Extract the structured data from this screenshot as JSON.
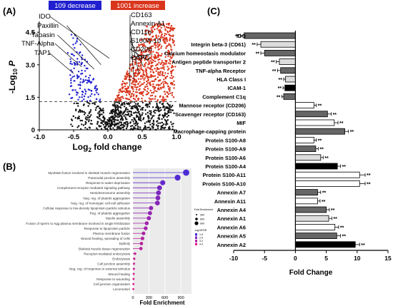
{
  "panels": {
    "a": "(A)",
    "b": "(B)",
    "c": "(C)"
  },
  "chart_data": [
    {
      "type": "scatter",
      "subtype": "volcano",
      "xlabel_main": "Log",
      "xlabel_sub": "2",
      "xlabel_rest": " fold change",
      "ylabel_main": "-Log",
      "ylabel_sub": "10",
      "ylabel_rest": " P",
      "xlim": [
        -1.0,
        1.0
      ],
      "ylim": [
        0,
        5
      ],
      "x_ticks": [
        -1.0,
        -0.5,
        0.0,
        0.5,
        1.0
      ],
      "x_tick_labels": [
        "-1.0",
        "-0.5",
        "0.0",
        "0.5",
        "1.0"
      ],
      "y_ticks": [
        0,
        1.5,
        3.0,
        4.5
      ],
      "y_tick_labels": [
        "0",
        "1.5",
        "3.0",
        "4.5"
      ],
      "threshold": 1.3,
      "decrease_label": "109 decrease",
      "increase_label": "1001 increase",
      "decrease_color": "#1f1fcf",
      "increase_color": "#d9351c",
      "neutral_color": "#111111",
      "left_labels": [
        "IDO",
        "Paxillin",
        "Tapasin",
        "TNF-Alpha",
        "TAP1"
      ],
      "right_labels": [
        "CD163",
        "Annexin A1",
        "CD11b",
        "S100A-10",
        "CD206",
        "CAPG"
      ]
    },
    {
      "type": "bar",
      "subtype": "lollipop",
      "xlabel": "Fold Enrichment",
      "xlim": [
        0,
        1100
      ],
      "x_ticks": [
        0,
        300,
        600,
        900
      ],
      "x_tick_labels": [
        "0",
        "300",
        "600",
        "900"
      ],
      "categories": [
        "Myoblast fusion involved in skeletal muscle regeneration",
        "Paranodal junction assembly",
        "Response to water deprivation",
        "Complement receptor mediated signaling pathway",
        "Hemidesmosome assembly",
        "Neg. reg. of platelet aggregation",
        "Neg. reg. of homotypic cell-cell adhesion",
        "Cellular response to low-density lipoprotein particle stimulus",
        "Reg. of platelet aggregation",
        "Myelin assembly",
        "Fusion of sperm to egg plasma membrane involved in single fertilization",
        "Response to lipoprotein particle",
        "Plasma membrane fusion",
        "Wound healing, spreading of cells",
        "Epiboly",
        "Skeletal muscle tissue regeneration",
        "Receptor-mediated endocytosis",
        "Endocytosis",
        "Cell junction assembly",
        "Neg. reg. of response to external stimulus",
        "Wound healing",
        "Response to wounding",
        "Cell junction organization",
        "Locomotion"
      ],
      "values": [
        1000,
        840,
        560,
        500,
        480,
        470,
        460,
        340,
        320,
        300,
        260,
        240,
        200,
        180,
        160,
        150,
        40,
        25,
        20,
        18,
        15,
        12,
        10,
        8
      ],
      "fdr": [
        1.4,
        1.6,
        2.0,
        2.3,
        2.5,
        2.6,
        2.7,
        2.9,
        3.0,
        3.1,
        3.3,
        3.4,
        3.6,
        3.7,
        3.8,
        3.9,
        4.1,
        4.2,
        4.3,
        4.3,
        4.4,
        4.5,
        4.6,
        4.7
      ],
      "legend_size_title": "Fold Enrichment",
      "legend_size_entries": [
        "300",
        "600",
        "900"
      ],
      "legend_color_title": "-log10FDR",
      "legend_color_entries": [
        "1.6",
        "2.4",
        "3.2",
        "4.0"
      ],
      "color_low": "#4b2bd6",
      "color_high": "#e0208a"
    },
    {
      "type": "bar",
      "orientation": "horizontal",
      "xlabel": "Fold Change",
      "xlim": [
        -10,
        15
      ],
      "x_ticks": [
        -10,
        -5,
        0,
        5,
        10,
        15
      ],
      "x_tick_labels": [
        "-10",
        "-5",
        "0",
        "5",
        "10",
        "15"
      ],
      "significance_mark": "**",
      "categories": [
        "IDO",
        "Integrin beta-3 (CD61)",
        "Calcium homeostasis modulator",
        "Antigen peptide transporter 2",
        "TNF-alpha Receptor",
        "HLA Class I",
        "ICAM-1",
        "Complement C1q",
        "Mannose receptor (CD206)",
        "Scavenger receptor (CD163)",
        "MIF",
        "Macrophage-capping protein",
        "Protein S100-A8",
        "Protein S100-A9",
        "Protein S100-A6",
        "Protein S100-A4",
        "Protein S100-A11",
        "Protein S100-A10",
        "Annexin A7",
        "Annexin A11",
        "Annexin A4",
        "Annexin A1",
        "Annexin A6",
        "Annexin A5",
        "Annexin A2"
      ],
      "values": [
        -8.3,
        -5.6,
        -5.0,
        -2.6,
        -2.4,
        -1.6,
        -1.7,
        -1.9,
        3.0,
        5.2,
        6.3,
        8.0,
        3.0,
        3.3,
        4.1,
        6.8,
        10.4,
        10.4,
        3.6,
        3.6,
        5.0,
        5.4,
        6.4,
        6.7,
        9.7
      ],
      "errors": [
        0.6,
        0.6,
        0.6,
        0.5,
        0.5,
        0.3,
        0.3,
        0.3,
        0.4,
        0.6,
        0.6,
        0.6,
        0.4,
        0.4,
        0.4,
        0.5,
        0.9,
        0.9,
        0.5,
        0.4,
        0.5,
        0.5,
        0.6,
        0.6,
        0.7
      ],
      "fills": [
        "#666666",
        "#dddddd",
        "#666666",
        "#dddddd",
        "#666666",
        "#dddddd",
        "#000000",
        "#666666",
        "#ffffff",
        "#666666",
        "#ffffff",
        "#666666",
        "#ffffff",
        "#666666",
        "#dddddd",
        "#000000",
        "#ffffff",
        "#ffffff",
        "#666666",
        "#ffffff",
        "#666666",
        "#dddddd",
        "#ffffff",
        "#666666",
        "#000000"
      ]
    }
  ]
}
